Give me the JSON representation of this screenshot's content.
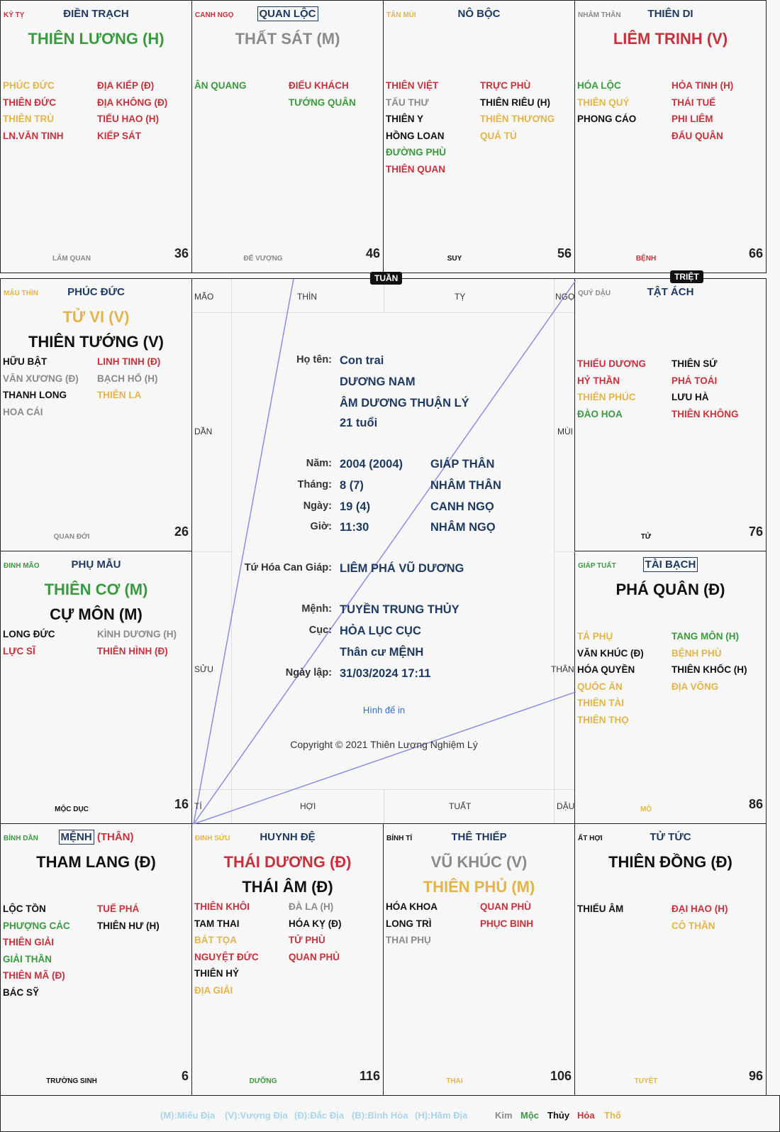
{
  "colors": {
    "r": "#c8313b",
    "g": "#3a9a3e",
    "y": "#e3b44a",
    "k": "#111111",
    "s": "#8a8a8a",
    "n": "#1f3a60"
  },
  "cells": [
    {
      "can": "KỶ TỴ",
      "canc": "r",
      "palace": "ĐIỀN TRẠCH",
      "mains": [
        [
          "THIÊN LƯƠNG (H)",
          "g"
        ]
      ],
      "left": [
        [
          "PHÚC ĐỨC",
          "y"
        ],
        [
          "THIÊN ĐỨC",
          "r"
        ],
        [
          "THIÊN TRÙ",
          "y"
        ],
        [
          "LN.VĂN TINH",
          "r"
        ]
      ],
      "right": [
        [
          "ĐỊA KIẾP (Đ)",
          "r"
        ],
        [
          "ĐỊA KHÔNG (Đ)",
          "r"
        ],
        [
          "TIỂU HAO (H)",
          "r"
        ],
        [
          "KIẾP SÁT",
          "r"
        ]
      ],
      "stage": "LÂM QUAN",
      "stagec": "s",
      "age": "36"
    },
    {
      "can": "CANH NGỌ",
      "canc": "r",
      "palace": "QUAN LỘC",
      "boxed": true,
      "mains": [
        [
          "THẤT SÁT (M)",
          "s"
        ]
      ],
      "left": [
        [
          "ÂN QUANG",
          "g"
        ]
      ],
      "right": [
        [
          "ĐIẾU KHÁCH",
          "r"
        ],
        [
          "TƯỚNG QUÂN",
          "g"
        ]
      ],
      "stage": "ĐẾ VƯỢNG",
      "stagec": "s",
      "age": "46"
    },
    {
      "can": "TÂN MÙI",
      "canc": "y",
      "palace": "NÔ BỘC",
      "mains": [],
      "left": [
        [
          "THIÊN VIỆT",
          "r"
        ],
        [
          "TẤU THƯ",
          "s"
        ],
        [
          "THIÊN Y",
          "k"
        ],
        [
          "HỒNG LOAN",
          "k"
        ],
        [
          "ĐƯỜNG PHÙ",
          "g"
        ],
        [
          "THIÊN QUAN",
          "r"
        ]
      ],
      "right": [
        [
          "TRỰC PHÙ",
          "r"
        ],
        [
          "THIÊN RIÊU (H)",
          "k"
        ],
        [
          "THIÊN THƯƠNG",
          "y"
        ],
        [
          "QUẢ TÚ",
          "y"
        ]
      ],
      "stage": "SUY",
      "stagec": "k",
      "age": "56"
    },
    {
      "can": "NHÂM THÂN",
      "canc": "s",
      "palace": "THIÊN DI",
      "mains": [
        [
          "LIÊM TRINH (V)",
          "r"
        ]
      ],
      "left": [
        [
          "HÓA LỘC",
          "g"
        ],
        [
          "THIÊN QUÝ",
          "y"
        ],
        [
          "PHONG CÁO",
          "k"
        ]
      ],
      "right": [
        [
          "HỎA TINH (H)",
          "r"
        ],
        [
          "THÁI TUẾ",
          "r"
        ],
        [
          "PHI LIÊM",
          "r"
        ],
        [
          "ĐẤU QUÂN",
          "r"
        ]
      ],
      "stage": "BỆNH",
      "stagec": "r",
      "age": "66"
    },
    {
      "can": "MẬU THÌN",
      "canc": "y",
      "palace": "PHÚC ĐỨC",
      "mains": [
        [
          "TỬ VI (V)",
          "y"
        ],
        [
          "THIÊN TƯỚNG (V)",
          "k"
        ]
      ],
      "left": [
        [
          "HỮU BẬT",
          "k"
        ],
        [
          "VĂN XƯƠNG (Đ)",
          "s"
        ],
        [
          "THANH LONG",
          "k"
        ],
        [
          "HOA CÁI",
          "s"
        ]
      ],
      "right": [
        [
          "LINH TINH (Đ)",
          "r"
        ],
        [
          "BẠCH HỔ (H)",
          "s"
        ],
        [
          "THIÊN LA",
          "y"
        ]
      ],
      "stage": "QUAN ĐỚI",
      "stagec": "s",
      "age": "26"
    },
    {
      "can": "QUÝ DẬU",
      "canc": "s",
      "palace": "TẬT ÁCH",
      "mains": [],
      "left": [
        [
          "THIẾU DƯƠNG",
          "r"
        ],
        [
          "HỶ THẦN",
          "r"
        ],
        [
          "THIÊN PHÚC",
          "y"
        ],
        [
          "ĐÀO HOA",
          "g"
        ]
      ],
      "right": [
        [
          "THIÊN SỨ",
          "k"
        ],
        [
          "PHÁ TOÁI",
          "r"
        ],
        [
          "LƯU HÀ",
          "k"
        ],
        [
          "THIÊN KHÔNG",
          "r"
        ]
      ],
      "stage": "TỬ",
      "stagec": "k",
      "age": "76"
    },
    {
      "can": "ĐINH MÃO",
      "canc": "g",
      "palace": "PHỤ MẪU",
      "mains": [
        [
          "THIÊN CƠ (M)",
          "g"
        ],
        [
          "CỰ MÔN (M)",
          "k"
        ]
      ],
      "left": [
        [
          "LONG ĐỨC",
          "k"
        ],
        [
          "LỰC SĨ",
          "r"
        ]
      ],
      "right": [
        [
          "KÌNH DƯƠNG (H)",
          "s"
        ],
        [
          "THIÊN HÌNH (Đ)",
          "r"
        ]
      ],
      "stage": "MỘC DỤC",
      "stagec": "k",
      "age": "16"
    },
    {
      "can": "GIÁP TUẤT",
      "canc": "g",
      "palace": "TÀI BẠCH",
      "boxed": true,
      "mains": [
        [
          "PHÁ QUÂN (Đ)",
          "k"
        ]
      ],
      "left": [
        [
          "TẢ PHỤ",
          "y"
        ],
        [
          "VĂN KHÚC (Đ)",
          "k"
        ],
        [
          "HÓA QUYỀN",
          "k"
        ],
        [
          "QUỐC ẤN",
          "y"
        ],
        [
          "THIÊN TÀI",
          "y"
        ],
        [
          "THIÊN THỌ",
          "y"
        ]
      ],
      "right": [
        [
          "TANG MÔN (H)",
          "g"
        ],
        [
          "BỆNH PHÙ",
          "y"
        ],
        [
          "THIÊN KHỐC (H)",
          "k"
        ],
        [
          "ĐỊA VÕNG",
          "y"
        ]
      ],
      "stage": "MỘ",
      "stagec": "y",
      "age": "86"
    },
    {
      "can": "BÍNH DẦN",
      "canc": "g",
      "palace": "MỆNH",
      "boxed": true,
      "palace_extra": "(THÂN)",
      "mains": [
        [
          "THAM LANG (Đ)",
          "k"
        ]
      ],
      "left": [
        [
          "LỘC TỒN",
          "k"
        ],
        [
          "PHƯỢNG CÁC",
          "g"
        ],
        [
          "THIÊN GIẢI",
          "r"
        ],
        [
          "GIẢI THẦN",
          "g"
        ],
        [
          "THIÊN MÃ (Đ)",
          "r"
        ],
        [
          "BÁC SỸ",
          "k"
        ]
      ],
      "right": [
        [
          "TUẾ PHÁ",
          "r"
        ],
        [
          "THIÊN HƯ (H)",
          "k"
        ]
      ],
      "stage": "TRƯỜNG SINH",
      "stagec": "k",
      "age": "6"
    },
    {
      "can": "ĐINH SỬU",
      "canc": "y",
      "palace": "HUYNH ĐỆ",
      "mains": [
        [
          "THÁI DƯƠNG (Đ)",
          "r"
        ],
        [
          "THÁI ÂM (Đ)",
          "k"
        ]
      ],
      "left": [
        [
          "THIÊN KHÔI",
          "r"
        ],
        [
          "TAM THAI",
          "k"
        ],
        [
          "BÁT TỌA",
          "y"
        ],
        [
          "NGUYỆT ĐỨC",
          "r"
        ],
        [
          "THIÊN HỶ",
          "k"
        ],
        [
          "ĐỊA GIẢI",
          "y"
        ]
      ],
      "right": [
        [
          "ĐÀ LA (H)",
          "s"
        ],
        [
          "HÓA KỴ (Đ)",
          "k"
        ],
        [
          "TỬ PHÙ",
          "r"
        ],
        [
          "QUAN PHỦ",
          "r"
        ]
      ],
      "stage": "DƯỠNG",
      "stagec": "g",
      "age": "116"
    },
    {
      "can": "BÍNH TÍ",
      "canc": "k",
      "palace": "THÊ THIẾP",
      "mains": [
        [
          "VŨ KHÚC (V)",
          "s"
        ],
        [
          "THIÊN PHỦ (M)",
          "y"
        ]
      ],
      "left": [
        [
          "HÓA KHOA",
          "k"
        ],
        [
          "LONG TRÌ",
          "k"
        ],
        [
          "THAI PHỤ",
          "s"
        ]
      ],
      "right": [
        [
          "QUAN PHÙ",
          "r"
        ],
        [
          "PHỤC BINH",
          "r"
        ]
      ],
      "stage": "THAI",
      "stagec": "y",
      "age": "106"
    },
    {
      "can": "ẤT HỢI",
      "canc": "k",
      "palace": "TỬ TỨC",
      "mains": [
        [
          "THIÊN ĐỒNG (Đ)",
          "k"
        ]
      ],
      "left": [
        [
          "THIẾU ÂM",
          "k"
        ]
      ],
      "right": [
        [
          "ĐẠI HAO (H)",
          "r"
        ],
        [
          "CÔ THẦN",
          "y"
        ]
      ],
      "stage": "TUYỆT",
      "stagec": "y",
      "age": "96"
    }
  ],
  "badges": {
    "tuan": "TUẦN",
    "triet": "TRIỆT"
  },
  "branches": {
    "mao": "MÃO",
    "thin": "THÌN",
    "ty": "TỴ",
    "ngo": "NGỌ",
    "dan": "DẦN",
    "mui": "MÙI",
    "suu": "SỬU",
    "than": "THÂN",
    "ti": "TÍ",
    "hoi": "HỢI",
    "tuat": "TUẤT",
    "dau": "DẬU"
  },
  "info": {
    "name_label": "Họ tên:",
    "name": "Con trai",
    "gender": "DƯƠNG NAM",
    "amduong": "ÂM DƯƠNG THUẬN LÝ",
    "age": "21 tuổi",
    "year_label": "Năm:",
    "year": "2004 (2004)",
    "year_cc": "GIÁP THÂN",
    "month_label": "Tháng:",
    "month": "8 (7)",
    "month_cc": "NHÂM THÂN",
    "day_label": "Ngày:",
    "day": "19 (4)",
    "day_cc": "CANH NGỌ",
    "hour_label": "Giờ:",
    "hour": "11:30",
    "hour_cc": "NHÂM NGỌ",
    "tuhoa_label": "Tứ Hóa Can Giáp:",
    "tuhoa": "LIÊM PHÁ VŨ DƯƠNG",
    "menh_label": "Mệnh:",
    "menh": "TUYỀN TRUNG THỦY",
    "cuc_label": "Cục:",
    "cuc": "HỎA LỤC CỤC",
    "than": "Thân cư MỆNH",
    "date_label": "Ngày lập:",
    "date": "31/03/2024 17:11",
    "print_link": "Hình để in",
    "copyright": "Copyright © 2021 Thiên Lương Nghiệm Lý"
  },
  "legend": {
    "m": "(M):Miếu Địa",
    "v": "(V):Vượng Địa",
    "d": "(Đ):Đắc Địa",
    "b": "(B):Bình Hòa",
    "h": "(H):Hãm Địa",
    "kim": "Kim",
    "moc": "Mộc",
    "thuy": "Thủy",
    "hoa": "Hỏa",
    "tho": "Thổ"
  }
}
